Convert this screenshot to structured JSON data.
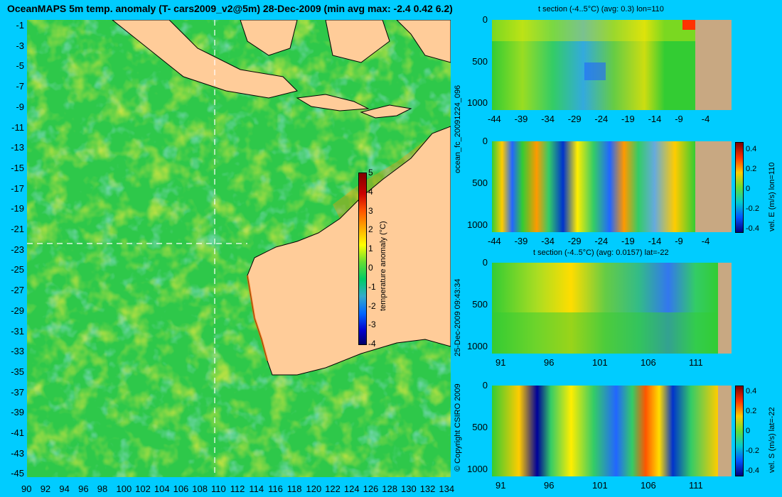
{
  "title": "OceanMAPS 5m temp. anomaly (T- cars2009_v2@5m) 28-Dec-2009 (min avg max: -2.4 0.42 6.2)",
  "map": {
    "lat_ticks": [
      "-1",
      "-3",
      "-5",
      "-7",
      "-9",
      "-11",
      "-13",
      "-15",
      "-17",
      "-19",
      "-21",
      "-23",
      "-25",
      "-27",
      "-29",
      "-31",
      "-33",
      "-35",
      "-37",
      "-39",
      "-41",
      "-43",
      "-45"
    ],
    "lon_ticks": [
      "90",
      "92",
      "94",
      "96",
      "98",
      "100",
      "102",
      "104",
      "106",
      "108",
      "110",
      "112",
      "114",
      "116",
      "118",
      "120",
      "122",
      "124",
      "126",
      "128",
      "130",
      "132",
      "134"
    ],
    "colorbar": {
      "label": "temperature anomaly (°C)",
      "ticks": [
        "5",
        "4",
        "3",
        "2",
        "1",
        "0",
        "-1",
        "-2",
        "-3",
        "-4"
      ]
    },
    "section_lon": "110",
    "section_lat": "-22"
  },
  "side_labels": {
    "forecast_id": "ocean_fc_20091224_096",
    "timestamp": "25-Dec-2009 09:43:34",
    "copyright": "© Copyright CSIRO 2009"
  },
  "sections": [
    {
      "title": "t section (-4..5°C) (avg: 0.3) lon=110",
      "y_ticks": [
        "0",
        "500",
        "1000"
      ],
      "x_ticks": [
        "-44",
        "-39",
        "-34",
        "-29",
        "-24",
        "-19",
        "-14",
        "-9",
        "-4"
      ]
    },
    {
      "title": "",
      "y_ticks": [
        "0",
        "500",
        "1000"
      ],
      "x_ticks": [
        "-44",
        "-39",
        "-34",
        "-29",
        "-24",
        "-19",
        "-14",
        "-9",
        "-4"
      ],
      "colorbar_label": "vel. E (m/s) lon=110",
      "colorbar_ticks": [
        "0.4",
        "0.2",
        "0",
        "-0.2",
        "-0.4"
      ]
    },
    {
      "title": "t section (-4..5°C) (avg: 0.0157) lat=-22",
      "y_ticks": [
        "0",
        "500",
        "1000"
      ],
      "x_ticks": [
        "91",
        "96",
        "101",
        "106",
        "111"
      ]
    },
    {
      "title": "",
      "y_ticks": [
        "0",
        "500",
        "1000"
      ],
      "x_ticks": [
        "91",
        "96",
        "101",
        "106",
        "111"
      ],
      "colorbar_label": "vel. S (m/s) lat=-22",
      "colorbar_ticks": [
        "0.4",
        "0.2",
        "0",
        "-0.2",
        "-0.4"
      ]
    }
  ],
  "colors": {
    "background": "#00ccff",
    "land": "#ffcc99",
    "section_land": "#c8a882",
    "ocean_base": "#33cc33"
  }
}
